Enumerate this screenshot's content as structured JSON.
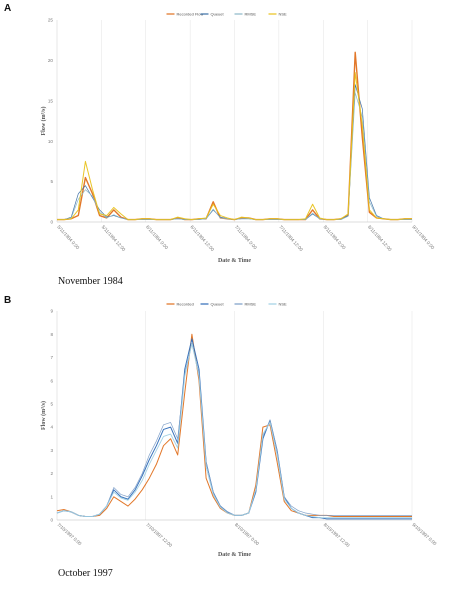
{
  "panels": [
    {
      "letter": "A",
      "caption": "November 1984"
    },
    {
      "letter": "B",
      "caption": "October 1997"
    }
  ],
  "chart_data": [
    {
      "type": "line",
      "xlabel": "Date & Time",
      "ylabel": "Flow (m³/s)",
      "ylim": [
        0,
        25
      ],
      "yticks": [
        0,
        5,
        10,
        15,
        20,
        25
      ],
      "grid": "vertical",
      "legend_position": "top-center",
      "x_tick_labels": [
        "5/11/1984 0:00",
        "5/11/1984 12:00",
        "6/11/1984 0:00",
        "6/11/1984 12:00",
        "7/11/1984 0:00",
        "7/11/1984 12:00",
        "8/11/1984 0:00",
        "8/11/1984 12:00",
        "9/11/1984 0:00"
      ],
      "x": [
        0,
        2,
        4,
        6,
        8,
        10,
        12,
        14,
        16,
        18,
        20,
        22,
        24,
        26,
        28,
        30,
        32,
        34,
        36,
        38,
        40,
        42,
        44,
        46,
        48,
        50,
        52,
        54,
        56,
        58,
        60,
        62,
        64,
        66,
        68,
        70,
        72,
        74,
        76,
        78,
        80,
        82,
        84,
        86,
        88,
        90,
        92,
        94,
        96,
        98,
        100
      ],
      "series": [
        {
          "name": "Recorded Flow",
          "color": "#e0701e",
          "width": 1.4,
          "values": [
            0.3,
            0.3,
            0.4,
            0.8,
            5.5,
            3.5,
            0.8,
            0.5,
            1.5,
            0.6,
            0.3,
            0.3,
            0.4,
            0.4,
            0.3,
            0.3,
            0.3,
            0.5,
            0.3,
            0.3,
            0.4,
            0.4,
            2.5,
            0.5,
            0.4,
            0.3,
            0.5,
            0.5,
            0.3,
            0.3,
            0.4,
            0.4,
            0.3,
            0.3,
            0.3,
            0.3,
            1.5,
            0.4,
            0.3,
            0.3,
            0.4,
            0.8,
            21.0,
            10.5,
            1.2,
            0.5,
            0.4,
            0.3,
            0.3,
            0.4,
            0.4
          ]
        },
        {
          "name": "Queuet",
          "color": "#3a6ea5",
          "width": 0.7,
          "values": [
            0.3,
            0.3,
            0.6,
            3.5,
            4.5,
            3.0,
            1.5,
            0.6,
            0.8,
            0.5,
            0.3,
            0.3,
            0.3,
            0.3,
            0.3,
            0.3,
            0.3,
            0.4,
            0.3,
            0.3,
            0.3,
            0.4,
            1.5,
            0.6,
            0.4,
            0.3,
            0.4,
            0.4,
            0.3,
            0.3,
            0.3,
            0.3,
            0.3,
            0.3,
            0.3,
            0.3,
            1.0,
            0.4,
            0.3,
            0.3,
            0.3,
            0.8,
            17.0,
            14.0,
            3.0,
            0.8,
            0.4,
            0.3,
            0.3,
            0.3,
            0.3
          ]
        },
        {
          "name": "RMSE",
          "color": "#8bb8c8",
          "width": 0.7,
          "values": [
            0.3,
            0.3,
            0.5,
            2.8,
            4.0,
            3.2,
            1.2,
            0.5,
            0.9,
            0.5,
            0.3,
            0.3,
            0.3,
            0.3,
            0.3,
            0.3,
            0.3,
            0.4,
            0.3,
            0.3,
            0.3,
            0.4,
            1.6,
            0.5,
            0.4,
            0.3,
            0.4,
            0.4,
            0.3,
            0.3,
            0.3,
            0.3,
            0.3,
            0.3,
            0.3,
            0.3,
            1.1,
            0.4,
            0.3,
            0.3,
            0.3,
            0.7,
            16.0,
            13.0,
            2.5,
            0.7,
            0.4,
            0.3,
            0.3,
            0.3,
            0.3
          ]
        },
        {
          "name": "NSE",
          "color": "#e8c21c",
          "width": 1.0,
          "values": [
            0.3,
            0.3,
            0.4,
            1.5,
            7.5,
            4.0,
            1.0,
            0.8,
            1.8,
            1.0,
            0.3,
            0.3,
            0.4,
            0.4,
            0.3,
            0.3,
            0.3,
            0.6,
            0.4,
            0.3,
            0.4,
            0.5,
            2.2,
            0.8,
            0.5,
            0.3,
            0.6,
            0.5,
            0.3,
            0.3,
            0.4,
            0.4,
            0.3,
            0.3,
            0.3,
            0.4,
            2.2,
            0.5,
            0.3,
            0.3,
            0.4,
            1.0,
            18.5,
            12.0,
            1.5,
            0.5,
            0.4,
            0.3,
            0.3,
            0.4,
            0.4
          ]
        }
      ]
    },
    {
      "type": "line",
      "xlabel": "Date & Time",
      "ylabel": "Flow (m³/s)",
      "ylim": [
        0,
        9
      ],
      "yticks": [
        0,
        1,
        2,
        3,
        4,
        5,
        6,
        7,
        8,
        9
      ],
      "grid": "vertical",
      "legend_position": "top-center",
      "x_tick_labels": [
        "7/10/1997 0:00",
        "7/10/1997 12:00",
        "8/10/1997 0:00",
        "8/10/1997 12:00",
        "9/10/1997 0:00"
      ],
      "x": [
        0,
        2,
        4,
        6,
        8,
        10,
        12,
        14,
        16,
        18,
        20,
        22,
        24,
        26,
        28,
        30,
        32,
        34,
        36,
        38,
        40,
        42,
        44,
        46,
        48,
        50,
        52,
        54,
        56,
        58,
        60,
        62,
        64,
        66,
        68,
        70,
        72,
        74,
        76,
        78,
        80,
        82,
        84,
        86,
        88,
        90,
        92,
        94,
        96,
        98,
        100
      ],
      "series": [
        {
          "name": "Recorded",
          "color": "#e0701e",
          "width": 1.0,
          "values": [
            0.4,
            0.45,
            0.35,
            0.2,
            0.15,
            0.15,
            0.2,
            0.5,
            1.0,
            0.8,
            0.6,
            0.9,
            1.3,
            1.8,
            2.4,
            3.2,
            3.5,
            2.8,
            5.5,
            8.0,
            6.0,
            1.8,
            1.0,
            0.5,
            0.3,
            0.2,
            0.2,
            0.3,
            1.5,
            4.0,
            4.1,
            2.5,
            0.8,
            0.4,
            0.3,
            0.2,
            0.2,
            0.2,
            0.2,
            0.15,
            0.15,
            0.15,
            0.15,
            0.15,
            0.15,
            0.15,
            0.15,
            0.15,
            0.15,
            0.15,
            0.15
          ]
        },
        {
          "name": "Queuet",
          "color": "#2e6cb8",
          "width": 1.0,
          "values": [
            0.3,
            0.4,
            0.35,
            0.2,
            0.15,
            0.15,
            0.25,
            0.6,
            1.3,
            1.0,
            0.9,
            1.3,
            1.9,
            2.6,
            3.2,
            3.9,
            4.0,
            3.3,
            6.5,
            7.8,
            6.5,
            2.5,
            1.2,
            0.6,
            0.35,
            0.2,
            0.2,
            0.3,
            1.2,
            3.5,
            4.3,
            3.0,
            1.0,
            0.5,
            0.3,
            0.2,
            0.1,
            0.1,
            0.05,
            0.05,
            0.05,
            0.05,
            0.05,
            0.05,
            0.05,
            0.05,
            0.05,
            0.05,
            0.05,
            0.05,
            0.05
          ]
        },
        {
          "name": "RMSE",
          "color": "#7a9cc6",
          "width": 0.7,
          "values": [
            0.3,
            0.4,
            0.35,
            0.2,
            0.15,
            0.15,
            0.25,
            0.6,
            1.4,
            1.1,
            1.0,
            1.4,
            2.0,
            2.8,
            3.4,
            4.1,
            4.2,
            3.5,
            6.3,
            7.6,
            6.3,
            2.5,
            1.2,
            0.6,
            0.35,
            0.2,
            0.2,
            0.3,
            1.3,
            3.6,
            4.3,
            3.0,
            1.0,
            0.6,
            0.4,
            0.3,
            0.25,
            0.2,
            0.2,
            0.2,
            0.2,
            0.2,
            0.2,
            0.2,
            0.2,
            0.2,
            0.2,
            0.2,
            0.2,
            0.2,
            0.2
          ]
        },
        {
          "name": "NSE",
          "color": "#9fd0e4",
          "width": 0.9,
          "values": [
            0.3,
            0.4,
            0.35,
            0.2,
            0.15,
            0.15,
            0.25,
            0.6,
            1.2,
            0.95,
            0.85,
            1.2,
            1.7,
            2.4,
            3.0,
            3.6,
            3.7,
            3.1,
            6.2,
            7.6,
            6.2,
            2.3,
            1.1,
            0.55,
            0.3,
            0.2,
            0.2,
            0.3,
            1.3,
            3.7,
            4.2,
            2.8,
            0.9,
            0.5,
            0.3,
            0.2,
            0.15,
            0.1,
            0.1,
            0.1,
            0.1,
            0.1,
            0.1,
            0.1,
            0.1,
            0.1,
            0.1,
            0.1,
            0.1,
            0.1,
            0.1
          ]
        }
      ]
    }
  ]
}
